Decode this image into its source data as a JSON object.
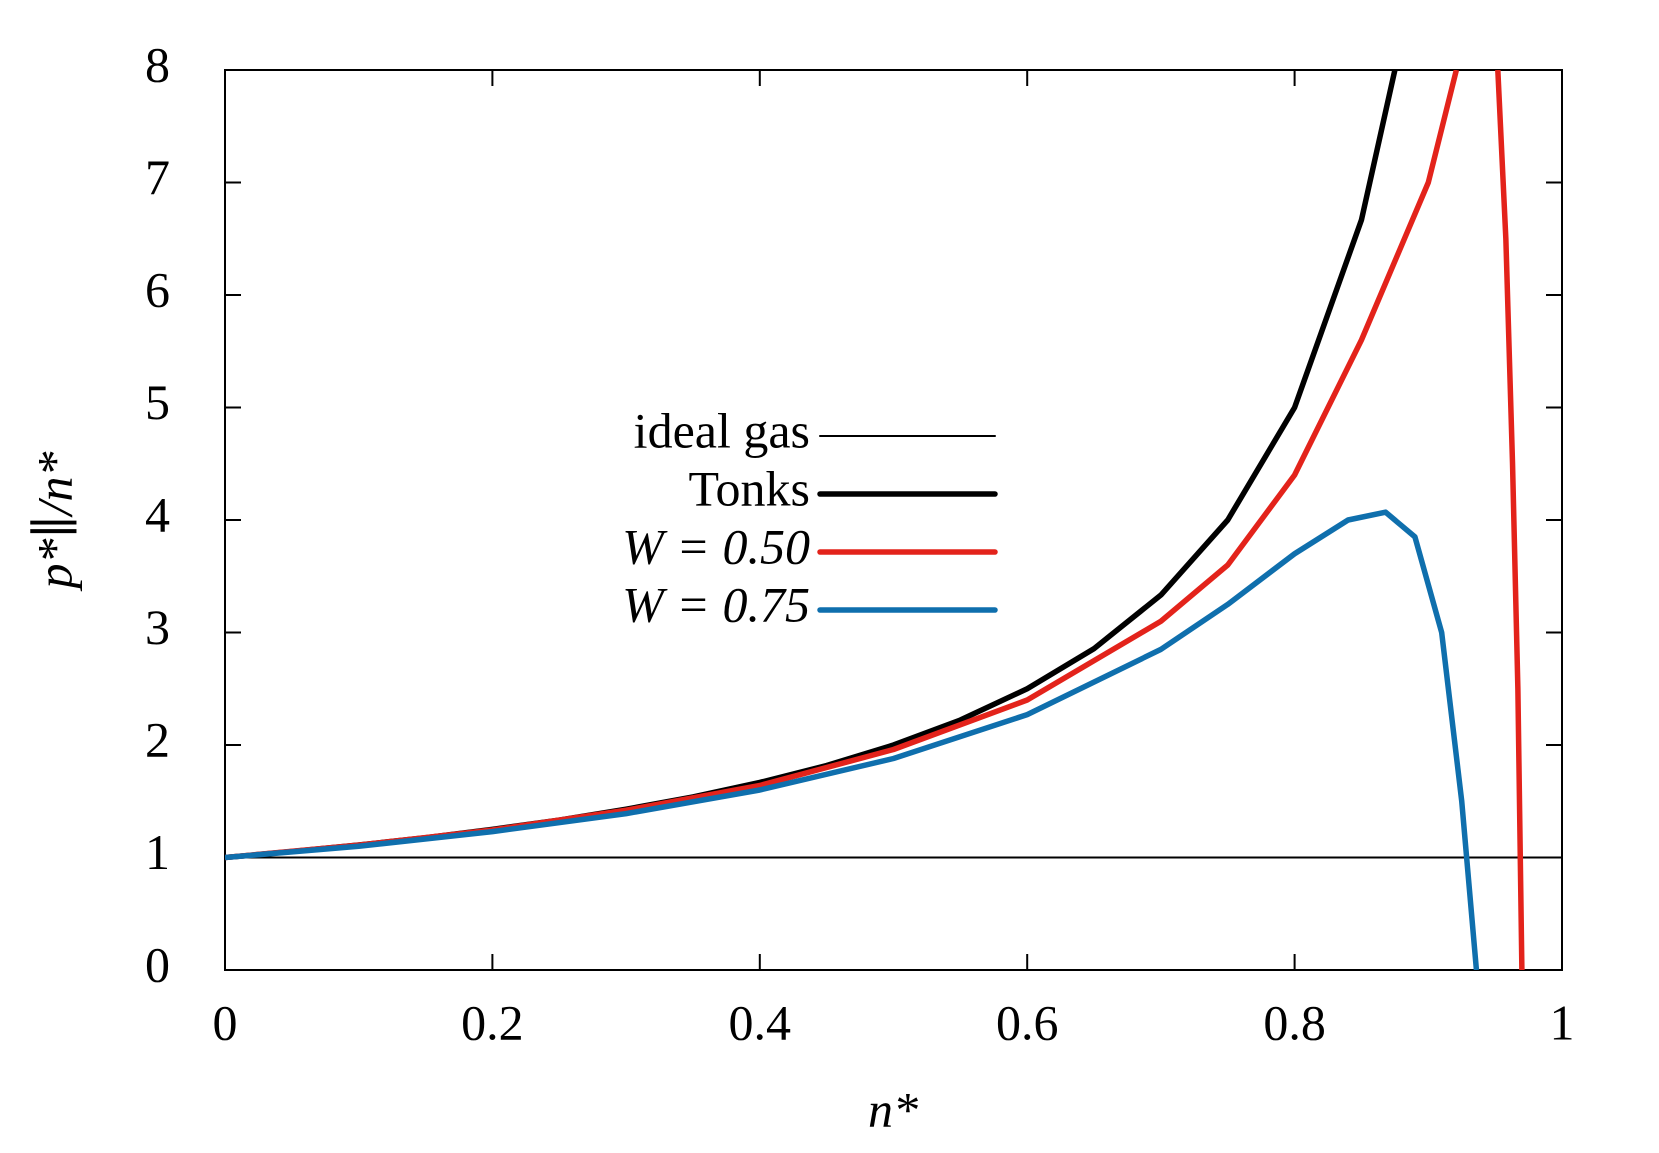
{
  "chart_data": {
    "type": "line",
    "xlabel": "n*",
    "ylabel": "p*∥/n*",
    "xlim": [
      0,
      1
    ],
    "ylim": [
      0,
      8
    ],
    "xticks": [
      0,
      0.2,
      0.4,
      0.6,
      0.8,
      1
    ],
    "yticks": [
      0,
      1,
      2,
      3,
      4,
      5,
      6,
      7,
      8
    ],
    "legend": "center-left",
    "series": [
      {
        "name": "ideal gas",
        "color": "#000000",
        "x": [
          0,
          1
        ],
        "values": [
          1,
          1
        ]
      },
      {
        "name": "Tonks",
        "color": "#000000",
        "x": [
          0,
          0.05,
          0.1,
          0.15,
          0.2,
          0.25,
          0.3,
          0.35,
          0.4,
          0.45,
          0.5,
          0.55,
          0.6,
          0.65,
          0.7,
          0.75,
          0.8,
          0.85,
          0.875
        ],
        "values": [
          1,
          1.053,
          1.111,
          1.176,
          1.25,
          1.333,
          1.429,
          1.538,
          1.667,
          1.818,
          2,
          2.222,
          2.5,
          2.857,
          3.333,
          4,
          5,
          6.667,
          8
        ]
      },
      {
        "name": "W = 0.50",
        "color": "#e3231b",
        "x": [
          0,
          0.1,
          0.2,
          0.3,
          0.4,
          0.5,
          0.6,
          0.7,
          0.75,
          0.8,
          0.85,
          0.9,
          0.921,
          null,
          0.952,
          0.958,
          0.963,
          0.967,
          0.97
        ],
        "values": [
          1,
          1.11,
          1.245,
          1.42,
          1.64,
          1.96,
          2.4,
          3.1,
          3.6,
          4.4,
          5.6,
          7.0,
          8,
          null,
          8,
          6.5,
          4.5,
          2.5,
          0
        ]
      },
      {
        "name": "W = 0.75",
        "color": "#0f6fad",
        "x": [
          0,
          0.1,
          0.2,
          0.3,
          0.4,
          0.5,
          0.6,
          0.7,
          0.75,
          0.8,
          0.84,
          0.868,
          0.89,
          0.91,
          0.925,
          0.936
        ],
        "values": [
          1,
          1.1,
          1.23,
          1.39,
          1.6,
          1.88,
          2.27,
          2.85,
          3.25,
          3.7,
          4.0,
          4.07,
          3.85,
          3.0,
          1.5,
          0
        ]
      }
    ]
  }
}
